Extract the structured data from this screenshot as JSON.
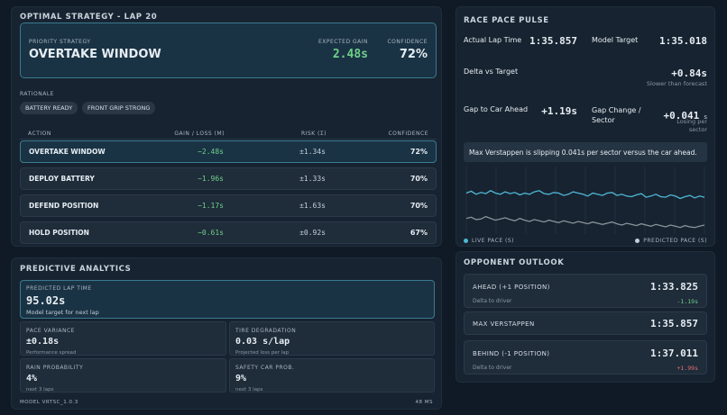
{
  "strategy": {
    "title": "OPTIMAL STRATEGY - LAP 20",
    "priority_label": "PRIORITY STRATEGY",
    "priority_name": "OVERTAKE WINDOW",
    "expected_gain_label": "EXPECTED GAIN",
    "expected_gain": "2.48s",
    "confidence_label": "CONFIDENCE",
    "confidence": "72%",
    "rationale_label": "RATIONALE",
    "chips": [
      "BATTERY READY",
      "FRONT GRIP STRONG"
    ],
    "columns": [
      "ACTION",
      "GAIN / LOSS (M)",
      "RISK (Σ)",
      "CONFIDENCE"
    ],
    "rows": [
      {
        "action": "OVERTAKE WINDOW",
        "gain": "−2.48s",
        "risk": "±1.34s",
        "confidence": "72%"
      },
      {
        "action": "DEPLOY BATTERY",
        "gain": "−1.96s",
        "risk": "±1.33s",
        "confidence": "70%"
      },
      {
        "action": "DEFEND POSITION",
        "gain": "−1.17s",
        "risk": "±1.63s",
        "confidence": "70%"
      },
      {
        "action": "HOLD POSITION",
        "gain": "−0.61s",
        "risk": "±0.92s",
        "confidence": "67%"
      }
    ]
  },
  "analytics": {
    "title": "PREDICTIVE ANALYTICS",
    "predicted_label": "PREDICTED LAP TIME",
    "predicted_value": "95.02s",
    "predicted_note": "Model target for next lap",
    "cells": [
      {
        "label": "PACE VARIANCE",
        "value": "±0.18s",
        "note": "Performance spread"
      },
      {
        "label": "TIRE DEGRADATION",
        "value": "0.03 s/lap",
        "note": "Projected loss per lap"
      },
      {
        "label": "RAIN PROBABILITY",
        "value": "4%",
        "note": "next 3 laps"
      },
      {
        "label": "SAFETY CAR PROB.",
        "value": "9%",
        "note": "next 3 laps"
      }
    ],
    "model": "MODEL VRTSC_1.0.3",
    "latency": "48 MS"
  },
  "pulse": {
    "title": "RACE PACE PULSE",
    "actual_label": "Actual Lap Time",
    "actual_value": "1:35.857",
    "model_label": "Model Target",
    "model_value": "1:35.018",
    "delta_label": "Delta vs Target",
    "delta_value": "+0.84s",
    "delta_sub": "Slower than forecast",
    "gap_label": "Gap to Car Ahead",
    "gap_value": "+1.19s",
    "gapchg_label_1": "Gap Change /",
    "gapchg_label_2": "Sector",
    "gapchg_value": "+0.041",
    "gapchg_unit": "s",
    "gapchg_sub_1": "Losing per",
    "gapchg_sub_2": "sector",
    "message": "Max Verstappen is slipping 0.041s per sector versus the car ahead.",
    "legend_live": "LIVE PACE (S)",
    "legend_pred": "PREDICTED PACE (S)",
    "colors": {
      "live": "#4fb8d8",
      "predicted": "#8a939c"
    }
  },
  "chart_data": {
    "type": "line",
    "series": [
      {
        "name": "LIVE PACE (S)",
        "values": [
          0.62,
          0.65,
          0.6,
          0.63,
          0.61,
          0.66,
          0.62,
          0.6,
          0.64,
          0.61,
          0.63,
          0.59,
          0.62,
          0.6,
          0.64,
          0.66,
          0.61,
          0.6,
          0.63,
          0.62,
          0.58,
          0.6,
          0.64,
          0.62,
          0.6,
          0.57,
          0.62,
          0.6,
          0.58,
          0.62,
          0.63,
          0.58,
          0.6,
          0.57,
          0.56,
          0.59,
          0.61,
          0.55,
          0.57,
          0.6,
          0.56,
          0.55,
          0.59,
          0.57,
          0.53,
          0.56,
          0.58,
          0.54,
          0.57,
          0.55
        ]
      },
      {
        "name": "PREDICTED PACE (S)",
        "values": [
          0.2,
          0.22,
          0.18,
          0.19,
          0.23,
          0.2,
          0.17,
          0.19,
          0.21,
          0.18,
          0.16,
          0.2,
          0.17,
          0.15,
          0.18,
          0.16,
          0.14,
          0.17,
          0.15,
          0.13,
          0.16,
          0.14,
          0.12,
          0.15,
          0.13,
          0.11,
          0.14,
          0.12,
          0.1,
          0.12,
          0.14,
          0.11,
          0.09,
          0.12,
          0.1,
          0.08,
          0.11,
          0.09,
          0.07,
          0.1,
          0.08,
          0.06,
          0.09,
          0.07,
          0.05,
          0.08,
          0.06,
          0.05,
          0.07,
          0.09
        ]
      }
    ],
    "ylim": [
      0,
      1
    ]
  },
  "opponents": {
    "title": "OPPONENT OUTLOOK",
    "items": [
      {
        "name": "AHEAD (+1 POSITION)",
        "time": "1:33.825",
        "sub": "Delta to driver",
        "delta": "-1.19s",
        "delta_color": "#6fd08a"
      },
      {
        "name": "MAX VERSTAPPEN",
        "time": "1:35.857",
        "sub": "",
        "delta": "",
        "delta_color": ""
      },
      {
        "name": "BEHIND (-1 POSITION)",
        "time": "1:37.011",
        "sub": "Delta to driver",
        "delta": "+1.99s",
        "delta_color": "#e07070"
      }
    ]
  }
}
